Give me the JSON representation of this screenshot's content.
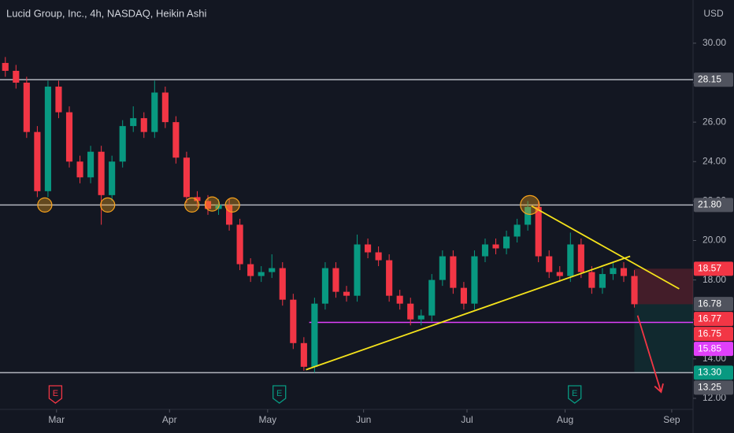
{
  "chart_data": {
    "type": "candlestick",
    "title": "Lucid Group, Inc., 4h, NASDAQ, Heikin Ashi",
    "y_axis_label": "USD",
    "up_color": "#089981",
    "down_color": "#f23645",
    "open": [
      29.0,
      28.6,
      28.0,
      25.5,
      22.5,
      27.8,
      26.5,
      24.0,
      23.2,
      24.5,
      22.3,
      24.0,
      25.8,
      26.2,
      25.5,
      27.5,
      26.0,
      24.2,
      22.2,
      22.0,
      21.6,
      21.8,
      20.8,
      18.8,
      18.2,
      18.4,
      18.6,
      17.0,
      14.8,
      13.6,
      16.8,
      18.6,
      17.4,
      17.2,
      19.8,
      19.4,
      19.0,
      17.2,
      16.8,
      16.0,
      16.2,
      18.0,
      19.2,
      17.6,
      16.8,
      19.2,
      19.8,
      19.6,
      20.2,
      20.8,
      21.7,
      19.2,
      18.4,
      18.2,
      19.8,
      18.4,
      17.6,
      18.3,
      18.6,
      18.2
    ],
    "high": [
      29.3,
      28.9,
      28.3,
      25.8,
      28.1,
      28.1,
      26.8,
      24.3,
      24.8,
      24.8,
      24.3,
      26.1,
      26.8,
      26.5,
      28.1,
      27.8,
      26.3,
      24.5,
      22.5,
      22.3,
      22.1,
      22.1,
      21.1,
      19.1,
      18.7,
      19.3,
      18.9,
      17.3,
      15.1,
      17.1,
      18.9,
      18.9,
      17.7,
      20.3,
      20.1,
      19.7,
      19.3,
      17.5,
      17.1,
      16.5,
      18.3,
      19.5,
      19.5,
      17.9,
      19.5,
      20.1,
      20.1,
      20.5,
      21.1,
      22.0,
      22.0,
      19.5,
      18.7,
      20.4,
      20.1,
      18.7,
      18.6,
      18.9,
      18.9,
      18.5
    ],
    "low": [
      28.3,
      27.7,
      25.2,
      22.2,
      22.2,
      26.2,
      23.7,
      22.9,
      22.9,
      20.8,
      22.0,
      23.7,
      25.5,
      25.2,
      25.2,
      25.7,
      23.9,
      21.9,
      21.7,
      21.3,
      21.3,
      20.5,
      18.5,
      17.9,
      17.9,
      18.1,
      16.7,
      14.5,
      13.4,
      13.3,
      16.5,
      17.1,
      16.9,
      16.9,
      19.1,
      18.7,
      16.9,
      16.5,
      15.7,
      15.7,
      15.9,
      17.7,
      17.3,
      16.5,
      16.5,
      18.9,
      19.3,
      19.3,
      19.9,
      20.5,
      18.9,
      18.1,
      17.9,
      17.9,
      18.1,
      17.3,
      17.3,
      18.0,
      17.9,
      16.6
    ],
    "close": [
      28.6,
      28.0,
      25.5,
      22.5,
      27.8,
      26.5,
      24.0,
      23.2,
      24.5,
      22.3,
      24.0,
      25.8,
      26.2,
      25.5,
      27.5,
      26.0,
      24.2,
      22.2,
      22.0,
      21.6,
      21.8,
      20.8,
      18.8,
      18.2,
      18.4,
      18.6,
      17.0,
      14.8,
      13.6,
      16.8,
      18.6,
      17.4,
      17.2,
      19.8,
      19.4,
      19.0,
      17.2,
      16.8,
      16.0,
      16.2,
      18.0,
      19.2,
      17.6,
      16.8,
      19.2,
      19.8,
      19.6,
      20.2,
      20.8,
      21.7,
      19.2,
      18.4,
      18.2,
      19.8,
      18.4,
      17.6,
      18.3,
      18.6,
      18.2,
      16.77
    ],
    "xlim": [
      -0.5,
      64.5
    ],
    "xticks": [
      {
        "value": 4.8,
        "label": "Mar"
      },
      {
        "value": 15.4,
        "label": "Apr"
      },
      {
        "value": 24.6,
        "label": "May"
      },
      {
        "value": 33.6,
        "label": "Jun"
      },
      {
        "value": 43.3,
        "label": "Jul"
      },
      {
        "value": 52.5,
        "label": "Aug"
      },
      {
        "value": 62.5,
        "label": "Sep"
      }
    ],
    "ylim": [
      11.44,
      32.19
    ],
    "yticks": [
      {
        "value": 30,
        "label": "30.00"
      },
      {
        "value": 28,
        "label": "28.00"
      },
      {
        "value": 26,
        "label": "26.00"
      },
      {
        "value": 24,
        "label": "24.00"
      },
      {
        "value": 22,
        "label": "22.00"
      },
      {
        "value": 20,
        "label": "20.00"
      },
      {
        "value": 18,
        "label": "18.00"
      },
      {
        "value": 16,
        "label": "16.00"
      },
      {
        "value": 14,
        "label": "14.00"
      },
      {
        "value": 12,
        "label": "12.00"
      }
    ],
    "hlines": [
      {
        "value": 28.15,
        "color": "#b2b5be"
      },
      {
        "value": 21.8,
        "color": "#b2b5be"
      },
      {
        "value": 13.3,
        "color": "#b2b5be"
      }
    ],
    "support": {
      "value": 15.85,
      "start": 28.5,
      "color": "#e040fb"
    },
    "zones": [
      {
        "from": 18.57,
        "to": 16.77,
        "start": 59.0,
        "color": "rgba(242,54,69,0.22)"
      },
      {
        "from": 16.77,
        "to": 13.3,
        "start": 59.0,
        "color": "rgba(8,153,129,0.14)"
      }
    ],
    "trendlines": [
      {
        "x": [
          28.2,
          58.6
        ],
        "y": [
          13.45,
          19.2
        ],
        "color": "#f5e31b"
      },
      {
        "x": [
          49.35,
          63.2
        ],
        "y": [
          21.75,
          17.55
        ],
        "color": "#f5e31b"
      }
    ],
    "circles": {
      "x": [
        3.7,
        9.6,
        17.5,
        19.4,
        21.3,
        49.2
      ],
      "y": [
        21.8,
        21.8,
        21.8,
        21.85,
        21.8,
        21.8
      ],
      "color": "#f7a21b"
    },
    "arrow": {
      "x": [
        59.3,
        61.5
      ],
      "y": [
        16.2,
        12.32
      ],
      "color": "#f23645"
    },
    "earnings": [
      {
        "label": "E",
        "x": 4.7,
        "color": "#f23645"
      },
      {
        "label": "E",
        "x": 25.7,
        "color": "#089981"
      },
      {
        "label": "E",
        "x": 53.4,
        "color": "#089981"
      }
    ],
    "tags": [
      {
        "value": 28.15,
        "label": "28.15",
        "color": "#50535e"
      },
      {
        "value": 21.8,
        "label": "21.80",
        "color": "#50535e"
      },
      {
        "value": 18.57,
        "label": "18.57",
        "color": "#f23645"
      },
      {
        "value": 16.78,
        "label": "16.78",
        "color": "#50535e"
      },
      {
        "value": 16.77,
        "label": "16.77",
        "color": "#f23645"
      },
      {
        "value": 16.75,
        "label": "16.75",
        "color": "#f23645"
      },
      {
        "value": 15.85,
        "label": "15.85",
        "color": "#e040fb"
      },
      {
        "value": 13.3,
        "label": "13.30",
        "color": "#089981"
      },
      {
        "value": 13.25,
        "label": "13.25",
        "color": "#50535e"
      }
    ]
  }
}
